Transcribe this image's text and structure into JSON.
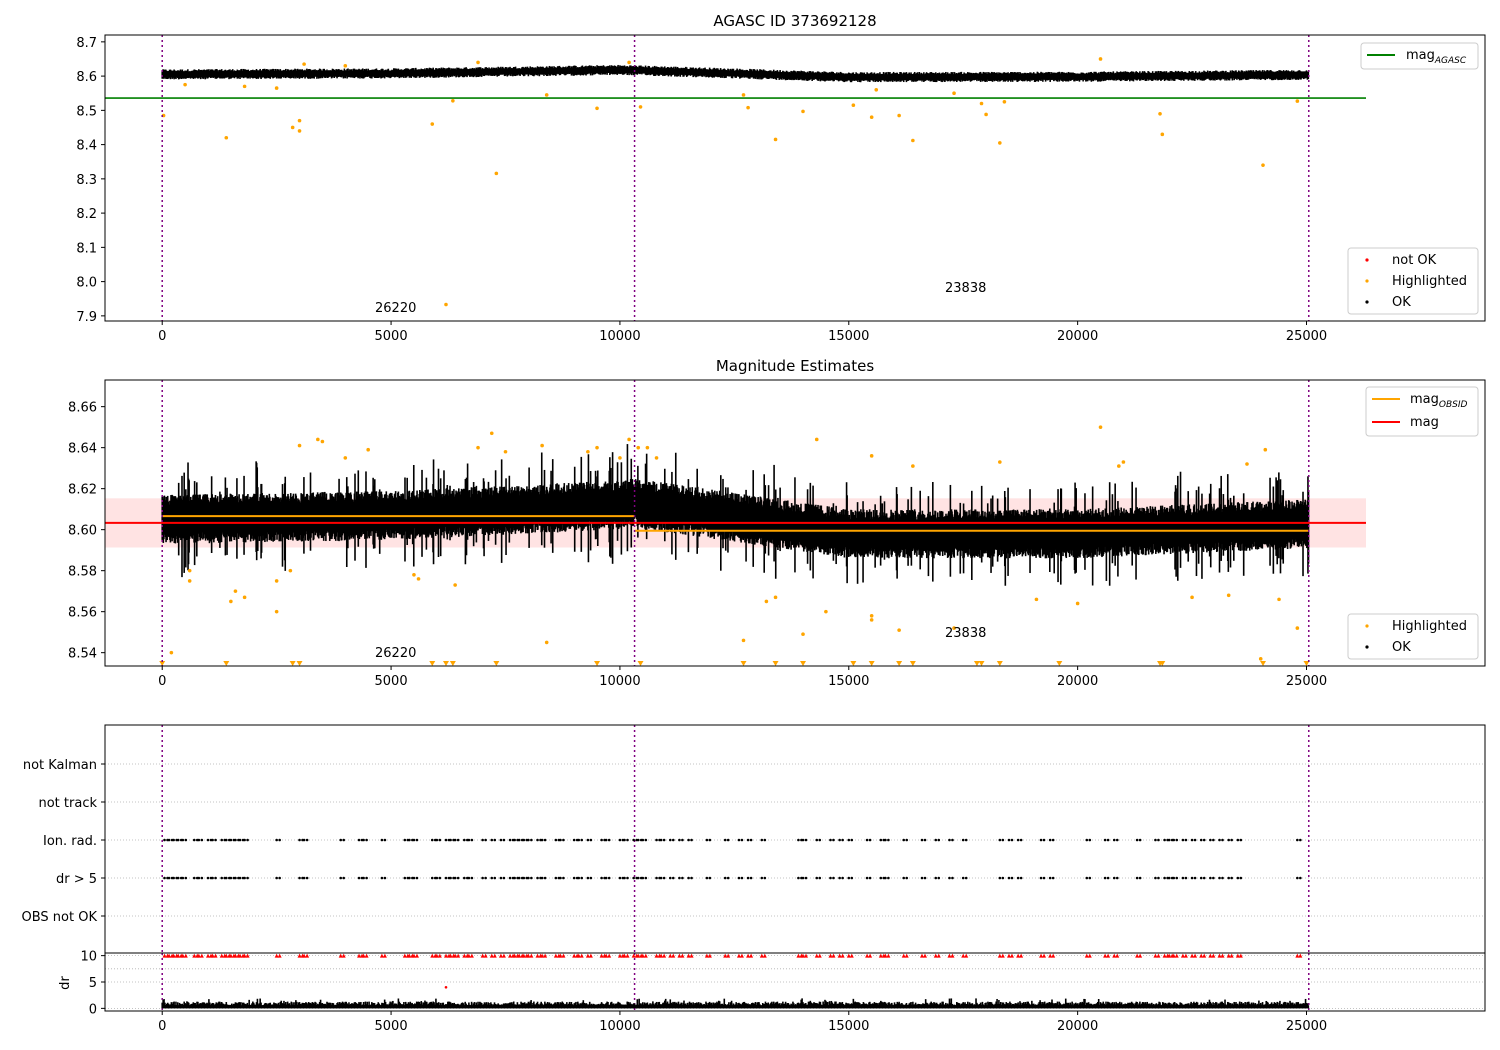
{
  "colors": {
    "ok": "#000000",
    "highlighted": "#FFA500",
    "not_ok": "#FF0000",
    "mag_agasc": "#008000",
    "mag": "#FF0000",
    "mag_obsid": "#FFA500",
    "obsid_boundary": "#800080",
    "mag_band": "#FFC0C0"
  },
  "chart_data": [
    {
      "type": "scatter",
      "title": "AGASC ID 373692128",
      "xlabel": "",
      "ylabel": "",
      "xlim": [
        -1250,
        28900
      ],
      "ylim": [
        7.885,
        8.72
      ],
      "xticks": [
        0,
        5000,
        10000,
        15000,
        20000,
        25000
      ],
      "xtick_labels": [
        "0",
        "5000",
        "10000",
        "15000",
        "20000",
        "25000"
      ],
      "yticks": [
        7.9,
        8.0,
        8.1,
        8.2,
        8.3,
        8.4,
        8.5,
        8.6,
        8.7
      ],
      "ytick_labels": [
        "7.9",
        "8.0",
        "8.1",
        "8.2",
        "8.3",
        "8.4",
        "8.5",
        "8.6",
        "8.7"
      ],
      "grid": false,
      "obsid_boundaries": [
        0,
        10320,
        25050
      ],
      "obsid_labels": [
        {
          "text": "26220",
          "x": 5200,
          "y": 7.9
        },
        {
          "text": "23838",
          "x": 17700,
          "y": 7.955
        }
      ],
      "lines": [
        {
          "name": "mag_AGASC",
          "y": 8.536,
          "x": [
            -1250,
            26300
          ]
        }
      ],
      "series": [
        {
          "name": "OK",
          "description": "dense band of about 25000 samples near 8.60-8.62 between x=0 and 25050",
          "envelope": {
            "x": [
              0,
              5000,
              10000,
              10320,
              15000,
              20000,
              25050
            ],
            "center": [
              8.605,
              8.608,
              8.618,
              8.617,
              8.597,
              8.598,
              8.604
            ],
            "halfwidth": 0.015
          }
        },
        {
          "name": "Highlighted",
          "points": [
            [
              30,
              8.485
            ],
            [
              1400,
              8.42
            ],
            [
              2850,
              8.45
            ],
            [
              3000,
              8.47
            ],
            [
              3000,
              8.44
            ],
            [
              5900,
              8.46
            ],
            [
              6200,
              7.933
            ],
            [
              6350,
              8.528
            ],
            [
              7300,
              8.316
            ],
            [
              8400,
              8.545
            ],
            [
              9500,
              8.506
            ],
            [
              10450,
              8.51
            ],
            [
              12700,
              8.545
            ],
            [
              12800,
              8.508
            ],
            [
              13400,
              8.415
            ],
            [
              14000,
              8.497
            ],
            [
              15100,
              8.515
            ],
            [
              15500,
              8.48
            ],
            [
              16100,
              8.485
            ],
            [
              16400,
              8.412
            ],
            [
              17300,
              8.55
            ],
            [
              17900,
              8.52
            ],
            [
              18000,
              8.488
            ],
            [
              18300,
              8.405
            ],
            [
              18400,
              8.525
            ],
            [
              21800,
              8.49
            ],
            [
              21850,
              8.43
            ],
            [
              24050,
              8.34
            ],
            [
              24800,
              8.527
            ],
            [
              500,
              8.575
            ],
            [
              1800,
              8.57
            ],
            [
              2500,
              8.565
            ],
            [
              3100,
              8.635
            ],
            [
              4000,
              8.63
            ],
            [
              6900,
              8.64
            ],
            [
              10200,
              8.64
            ],
            [
              15600,
              8.56
            ],
            [
              20500,
              8.65
            ]
          ]
        },
        {
          "name": "not OK",
          "points": []
        }
      ],
      "legends": [
        {
          "placement": "top-right",
          "entries": [
            "mag_AGASC"
          ]
        },
        {
          "placement": "bottom-right",
          "entries": [
            "not OK",
            "Highlighted",
            "OK"
          ]
        }
      ]
    },
    {
      "type": "scatter",
      "title": "Magnitude Estimates",
      "xlabel": "",
      "ylabel": "",
      "xlim": [
        -1250,
        28900
      ],
      "ylim": [
        8.5335,
        8.673
      ],
      "xticks": [
        0,
        5000,
        10000,
        15000,
        20000,
        25000
      ],
      "xtick_labels": [
        "0",
        "5000",
        "10000",
        "15000",
        "20000",
        "25000"
      ],
      "yticks": [
        8.54,
        8.56,
        8.58,
        8.6,
        8.62,
        8.64,
        8.66
      ],
      "ytick_labels": [
        "8.54",
        "8.56",
        "8.58",
        "8.60",
        "8.62",
        "8.64",
        "8.66"
      ],
      "grid": false,
      "obsid_boundaries": [
        0,
        10320,
        25050
      ],
      "obsid_labels": [
        {
          "text": "26220",
          "x": 5200,
          "y": 8.537
        },
        {
          "text": "23838",
          "x": 17700,
          "y": 8.5485
        }
      ],
      "lines": [
        {
          "name": "mag",
          "y": 8.6033,
          "x": [
            -1250,
            26300
          ]
        },
        {
          "name": "mag_OBSID",
          "y": 8.6066,
          "x": [
            0,
            10320
          ]
        },
        {
          "name": "mag_OBSID",
          "y": 8.5995,
          "x": [
            10320,
            25050
          ]
        }
      ],
      "bands": [
        {
          "name": "mag error",
          "y": [
            8.5913,
            8.6153
          ],
          "x": [
            -1250,
            26300
          ]
        }
      ],
      "series": [
        {
          "name": "OK",
          "description": "dense scatter of about 25000 samples, roughly 8.58-8.63 with spiky excursions",
          "envelope": {
            "x": [
              0,
              5000,
              10000,
              10320,
              15000,
              20000,
              25050
            ],
            "center": [
              8.605,
              8.607,
              8.612,
              8.613,
              8.598,
              8.598,
              8.603
            ],
            "halfwidth": 0.012
          }
        },
        {
          "name": "Highlighted",
          "points": [
            [
              200,
              8.54
            ],
            [
              600,
              8.575
            ],
            [
              600,
              8.58
            ],
            [
              1500,
              8.565
            ],
            [
              1600,
              8.57
            ],
            [
              1800,
              8.567
            ],
            [
              2500,
              8.56
            ],
            [
              2500,
              8.575
            ],
            [
              2800,
              8.58
            ],
            [
              3000,
              8.641
            ],
            [
              3400,
              8.644
            ],
            [
              3500,
              8.643
            ],
            [
              4000,
              8.635
            ],
            [
              4500,
              8.639
            ],
            [
              5500,
              8.578
            ],
            [
              5600,
              8.576
            ],
            [
              6400,
              8.573
            ],
            [
              6900,
              8.64
            ],
            [
              7200,
              8.647
            ],
            [
              7500,
              8.638
            ],
            [
              8300,
              8.641
            ],
            [
              8400,
              8.545
            ],
            [
              9300,
              8.638
            ],
            [
              9500,
              8.64
            ],
            [
              10000,
              8.635
            ],
            [
              10200,
              8.644
            ],
            [
              10400,
              8.64
            ],
            [
              10600,
              8.64
            ],
            [
              10800,
              8.635
            ],
            [
              12700,
              8.546
            ],
            [
              13200,
              8.565
            ],
            [
              13400,
              8.567
            ],
            [
              14000,
              8.549
            ],
            [
              14300,
              8.644
            ],
            [
              14500,
              8.56
            ],
            [
              15500,
              8.558
            ],
            [
              15500,
              8.556
            ],
            [
              15500,
              8.636
            ],
            [
              16100,
              8.551
            ],
            [
              16400,
              8.631
            ],
            [
              17300,
              8.552
            ],
            [
              18300,
              8.633
            ],
            [
              19100,
              8.566
            ],
            [
              20000,
              8.564
            ],
            [
              20500,
              8.65
            ],
            [
              20900,
              8.631
            ],
            [
              21000,
              8.633
            ],
            [
              22500,
              8.567
            ],
            [
              23300,
              8.568
            ],
            [
              23700,
              8.632
            ],
            [
              24000,
              8.537
            ],
            [
              24100,
              8.639
            ],
            [
              24400,
              8.566
            ],
            [
              24800,
              8.552
            ]
          ]
        },
        {
          "name": "Highlighted (below axis)",
          "marker": "triangle-down",
          "y": 8.5345,
          "x": [
            0,
            1400,
            2850,
            3000,
            5900,
            6200,
            6350,
            7300,
            9500,
            10450,
            12700,
            13400,
            14000,
            15100,
            15500,
            16100,
            16400,
            17800,
            17900,
            18300,
            19600,
            21800,
            21850,
            24050,
            25000
          ]
        }
      ],
      "legends": [
        {
          "placement": "top-right",
          "entries": [
            "mag_OBSID",
            "mag"
          ]
        },
        {
          "placement": "bottom-right",
          "entries": [
            "Highlighted",
            "OK"
          ]
        }
      ]
    },
    {
      "type": "scatter",
      "title": "",
      "xlabel": "",
      "ylabel": "",
      "xlim": [
        -1250,
        28900
      ],
      "category_axis": [
        "OBS not OK",
        "dr > 5",
        "Ion. rad.",
        "not track",
        "not Kalman"
      ],
      "grid": true,
      "obsid_boundaries": [
        0,
        10320,
        25050
      ],
      "series": [
        {
          "name": "dr > 5",
          "category": "dr > 5",
          "x": [
            50,
            150,
            250,
            350,
            450,
            700,
            800,
            1000,
            1100,
            1300,
            1400,
            1500,
            1600,
            1700,
            1800,
            2500,
            3000,
            3100,
            3900,
            4300,
            4400,
            4800,
            5300,
            5400,
            5500,
            5900,
            6000,
            6200,
            6300,
            6400,
            6600,
            6700,
            7000,
            7200,
            7400,
            7600,
            7700,
            7800,
            7900,
            8000,
            8200,
            8300,
            8600,
            8700,
            9000,
            9100,
            9300,
            9600,
            9700,
            10000,
            10100,
            10300,
            10400,
            10500,
            10800,
            10900,
            11100,
            11300,
            11500,
            11900,
            12300,
            12600,
            12800,
            13100,
            13900,
            14000,
            14300,
            14600,
            14800,
            15000,
            15400,
            15700,
            15800,
            16200,
            16600,
            16900,
            17200,
            17500,
            18300,
            18500,
            18700,
            19200,
            19400,
            20200,
            20600,
            20800,
            21300,
            21700,
            21900,
            22000,
            22100,
            22300,
            22500,
            22700,
            22900,
            23100,
            23300,
            23500,
            24800
          ]
        },
        {
          "name": "Ion. rad.",
          "category": "Ion. rad.",
          "x": [
            50,
            150,
            250,
            350,
            450,
            700,
            800,
            1000,
            1100,
            1300,
            1400,
            1500,
            1600,
            1700,
            1800,
            2500,
            3000,
            3100,
            3900,
            4300,
            4400,
            4800,
            5300,
            5400,
            5500,
            5900,
            6000,
            6200,
            6300,
            6400,
            6600,
            6700,
            7000,
            7200,
            7400,
            7600,
            7700,
            7800,
            7900,
            8000,
            8200,
            8300,
            8600,
            8700,
            9000,
            9100,
            9300,
            9600,
            9700,
            10000,
            10100,
            10300,
            10400,
            10500,
            10800,
            10900,
            11100,
            11300,
            11500,
            11900,
            12300,
            12600,
            12800,
            13100,
            13900,
            14000,
            14300,
            14600,
            14800,
            15000,
            15400,
            15700,
            15800,
            16200,
            16600,
            16900,
            17200,
            17500,
            18300,
            18500,
            18700,
            19200,
            19400,
            20200,
            20600,
            20800,
            21300,
            21700,
            21900,
            22000,
            22100,
            22300,
            22500,
            22700,
            22900,
            23100,
            23300,
            23500,
            24800
          ]
        }
      ]
    },
    {
      "type": "scatter",
      "title": "",
      "xlabel": "",
      "ylabel": "dr",
      "xlim": [
        -1250,
        28900
      ],
      "ylim": [
        -0.5,
        10.5
      ],
      "yticks": [
        0,
        5,
        10
      ],
      "ytick_labels": [
        "0",
        "5",
        "10"
      ],
      "xticks": [
        0,
        5000,
        10000,
        15000,
        20000,
        25000
      ],
      "xtick_labels": [
        "0",
        "5000",
        "10000",
        "15000",
        "20000",
        "25000"
      ],
      "grid": true,
      "obsid_boundaries": [
        0,
        10320,
        25050
      ],
      "series": [
        {
          "name": "OK",
          "description": "dense band of dr values between 0 and about 1.5",
          "envelope": {
            "x": [
              0,
              25050
            ],
            "center": [
              0.5,
              0.5
            ],
            "halfwidth": 0.5
          }
        },
        {
          "name": "not OK",
          "marker": "triangle-up",
          "y": 10,
          "x": [
            50,
            150,
            250,
            350,
            450,
            700,
            800,
            1000,
            1100,
            1300,
            1400,
            1500,
            1600,
            1700,
            1800,
            2500,
            3000,
            3100,
            3900,
            4300,
            4400,
            4800,
            5300,
            5400,
            5500,
            5900,
            6000,
            6200,
            6300,
            6400,
            6600,
            6700,
            7000,
            7200,
            7400,
            7600,
            7700,
            7800,
            7900,
            8000,
            8200,
            8300,
            8600,
            8700,
            9000,
            9100,
            9300,
            9600,
            9700,
            10000,
            10100,
            10300,
            10400,
            10500,
            10800,
            10900,
            11100,
            11300,
            11500,
            11900,
            12300,
            12600,
            12800,
            13100,
            13900,
            14000,
            14300,
            14600,
            14800,
            15000,
            15400,
            15700,
            15800,
            16200,
            16600,
            16900,
            17200,
            17500,
            18300,
            18500,
            18700,
            19200,
            19400,
            20200,
            20600,
            20800,
            21300,
            21700,
            21900,
            22000,
            22100,
            22300,
            22500,
            22700,
            22900,
            23100,
            23300,
            23500,
            24800
          ]
        },
        {
          "name": "not OK (single)",
          "points": [
            [
              6200,
              4.0
            ]
          ]
        }
      ]
    }
  ]
}
